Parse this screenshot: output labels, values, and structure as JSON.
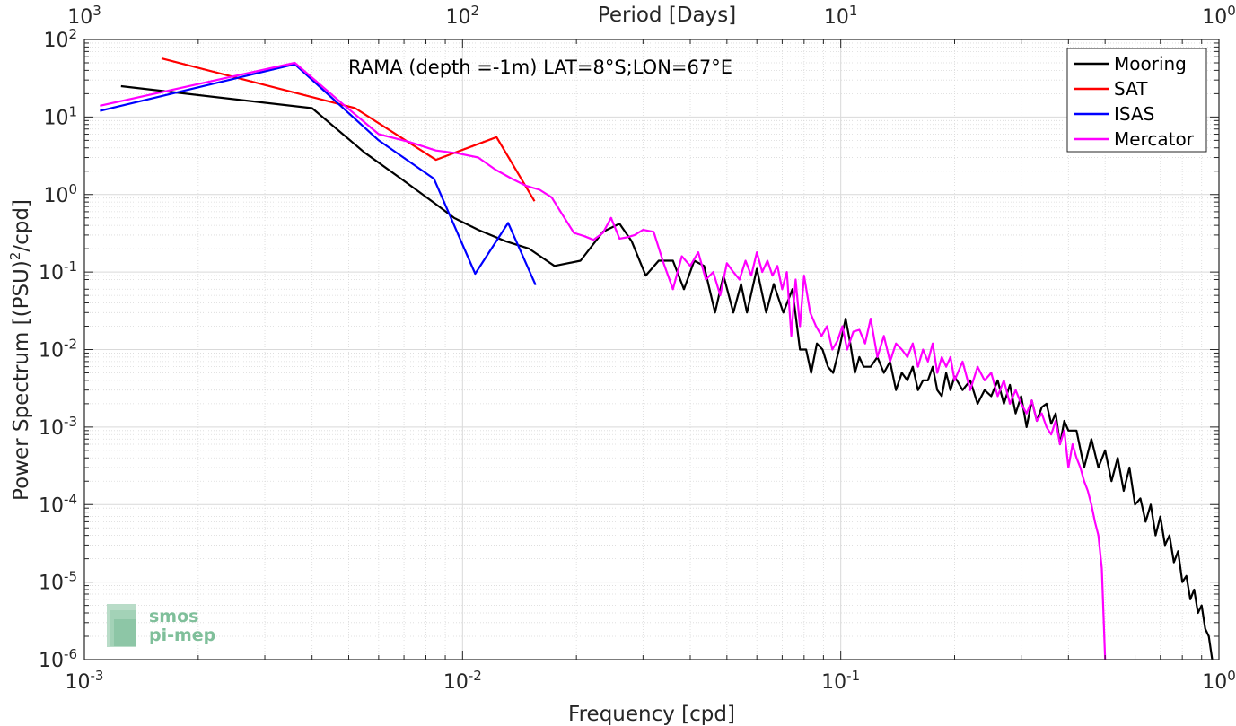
{
  "chart_data": {
    "type": "line",
    "x_scale": "log",
    "y_scale": "log",
    "xlim": [
      0.001,
      1
    ],
    "ylim": [
      1e-06,
      100
    ],
    "grid": true,
    "xlabel": "Frequency [cpd]",
    "ylabel": "Power Spectrum [(PSU)",
    "ylabel_sup": "2",
    "ylabel_suffix": "/cpd]",
    "top_xlabel": "Period [Days]",
    "annotation": "RAMA (depth =-1m) LAT=8°S;LON=67°E",
    "legend_position": "top-right",
    "x_tick_labels": [
      {
        "value": 0.001,
        "base": "10",
        "exp": "-3"
      },
      {
        "value": 0.01,
        "base": "10",
        "exp": "-2"
      },
      {
        "value": 0.1,
        "base": "10",
        "exp": "-1"
      },
      {
        "value": 1,
        "base": "10",
        "exp": "0"
      }
    ],
    "top_tick_labels": [
      {
        "value": 0.001,
        "base": "10",
        "exp": "3"
      },
      {
        "value": 0.01,
        "base": "10",
        "exp": "2"
      },
      {
        "value": 0.1,
        "base": "10",
        "exp": "1"
      },
      {
        "value": 1,
        "base": "10",
        "exp": "0"
      }
    ],
    "y_tick_labels": [
      {
        "value": 100,
        "base": "10",
        "exp": "2"
      },
      {
        "value": 10,
        "base": "10",
        "exp": "1"
      },
      {
        "value": 1,
        "base": "10",
        "exp": "0"
      },
      {
        "value": 0.1,
        "base": "10",
        "exp": "-1"
      },
      {
        "value": 0.01,
        "base": "10",
        "exp": "-2"
      },
      {
        "value": 0.001,
        "base": "10",
        "exp": "-3"
      },
      {
        "value": 0.0001,
        "base": "10",
        "exp": "-4"
      },
      {
        "value": 1e-05,
        "base": "10",
        "exp": "-5"
      },
      {
        "value": 1e-06,
        "base": "10",
        "exp": "-6"
      }
    ],
    "series": [
      {
        "name": "Mooring",
        "color": "#000000",
        "x": [
          0.00125,
          0.004,
          0.0055,
          0.007,
          0.0085,
          0.0095,
          0.011,
          0.013,
          0.015,
          0.0175,
          0.0205,
          0.0235,
          0.026,
          0.028,
          0.0305,
          0.033,
          0.036,
          0.0385,
          0.041,
          0.0435,
          0.0465,
          0.049,
          0.052,
          0.0545,
          0.0565,
          0.06,
          0.0635,
          0.0665,
          0.0705,
          0.0745,
          0.078,
          0.081,
          0.0835,
          0.0865,
          0.0895,
          0.0925,
          0.0955,
          0.099,
          0.103,
          0.106,
          0.109,
          0.112,
          0.115,
          0.12,
          0.125,
          0.13,
          0.135,
          0.14,
          0.145,
          0.15,
          0.155,
          0.16,
          0.165,
          0.17,
          0.175,
          0.18,
          0.185,
          0.19,
          0.195,
          0.2,
          0.21,
          0.22,
          0.23,
          0.24,
          0.25,
          0.26,
          0.27,
          0.28,
          0.29,
          0.3,
          0.31,
          0.32,
          0.33,
          0.34,
          0.35,
          0.36,
          0.37,
          0.38,
          0.39,
          0.4,
          0.42,
          0.44,
          0.46,
          0.48,
          0.5,
          0.52,
          0.54,
          0.56,
          0.58,
          0.6,
          0.62,
          0.64,
          0.66,
          0.68,
          0.7,
          0.72,
          0.74,
          0.76,
          0.78,
          0.8,
          0.82,
          0.84,
          0.86,
          0.88,
          0.9,
          0.92,
          0.94,
          0.96
        ],
        "y": [
          25,
          13,
          3.5,
          1.5,
          0.75,
          0.5,
          0.35,
          0.25,
          0.2,
          0.12,
          0.14,
          0.33,
          0.42,
          0.25,
          0.09,
          0.14,
          0.14,
          0.06,
          0.14,
          0.12,
          0.03,
          0.09,
          0.03,
          0.07,
          0.03,
          0.11,
          0.03,
          0.07,
          0.03,
          0.06,
          0.01,
          0.01,
          0.005,
          0.012,
          0.01,
          0.006,
          0.005,
          0.01,
          0.025,
          0.012,
          0.005,
          0.008,
          0.006,
          0.006,
          0.008,
          0.005,
          0.007,
          0.003,
          0.005,
          0.004,
          0.006,
          0.003,
          0.004,
          0.004,
          0.006,
          0.003,
          0.0025,
          0.005,
          0.003,
          0.0045,
          0.003,
          0.004,
          0.002,
          0.003,
          0.0025,
          0.004,
          0.002,
          0.0035,
          0.0015,
          0.0025,
          0.001,
          0.0022,
          0.0012,
          0.0018,
          0.002,
          0.0011,
          0.0015,
          0.0006,
          0.0012,
          0.0009,
          0.0009,
          0.0003,
          0.0007,
          0.0003,
          0.0005,
          0.0002,
          0.0004,
          0.00015,
          0.0003,
          0.0001,
          0.00012,
          6e-05,
          0.0001,
          4e-05,
          7e-05,
          3e-05,
          4e-05,
          1.8e-05,
          2.5e-05,
          1e-05,
          1.2e-05,
          6e-06,
          8e-06,
          4e-06,
          5e-06,
          2.5e-06,
          2e-06,
          1e-06
        ]
      },
      {
        "name": "SAT",
        "color": "#ff0000",
        "x": [
          0.0016,
          0.0052,
          0.0085,
          0.0123,
          0.0155
        ],
        "y": [
          57,
          13,
          2.8,
          5.5,
          0.82
        ]
      },
      {
        "name": "ISAS",
        "color": "#0000ff",
        "x": [
          0.0011,
          0.0036,
          0.006,
          0.0084,
          0.0108,
          0.0132,
          0.0156
        ],
        "y": [
          12,
          48,
          5,
          1.6,
          0.095,
          0.43,
          0.068
        ]
      },
      {
        "name": "Mercator",
        "color": "#ff00ff",
        "x": [
          0.0011,
          0.0036,
          0.0048,
          0.006,
          0.0072,
          0.0085,
          0.0097,
          0.011,
          0.0122,
          0.0135,
          0.0147,
          0.016,
          0.0172,
          0.0185,
          0.0197,
          0.021,
          0.0222,
          0.0235,
          0.0247,
          0.026,
          0.0272,
          0.0285,
          0.03,
          0.032,
          0.034,
          0.036,
          0.038,
          0.04,
          0.042,
          0.044,
          0.046,
          0.048,
          0.05,
          0.052,
          0.054,
          0.056,
          0.058,
          0.06,
          0.062,
          0.064,
          0.066,
          0.068,
          0.07,
          0.072,
          0.074,
          0.076,
          0.078,
          0.08,
          0.083,
          0.086,
          0.089,
          0.092,
          0.095,
          0.098,
          0.101,
          0.104,
          0.108,
          0.112,
          0.116,
          0.12,
          0.125,
          0.13,
          0.135,
          0.14,
          0.145,
          0.15,
          0.155,
          0.16,
          0.165,
          0.17,
          0.175,
          0.18,
          0.185,
          0.19,
          0.195,
          0.2,
          0.21,
          0.22,
          0.23,
          0.24,
          0.25,
          0.26,
          0.27,
          0.28,
          0.29,
          0.3,
          0.31,
          0.32,
          0.33,
          0.34,
          0.35,
          0.36,
          0.37,
          0.38,
          0.39,
          0.4,
          0.41,
          0.42,
          0.43,
          0.44,
          0.45,
          0.46,
          0.47,
          0.48,
          0.49,
          0.5
        ],
        "y": [
          14,
          50,
          15,
          6,
          4.8,
          3.7,
          3.4,
          3,
          2.1,
          1.6,
          1.3,
          1.15,
          0.92,
          0.52,
          0.32,
          0.29,
          0.26,
          0.32,
          0.5,
          0.27,
          0.28,
          0.3,
          0.35,
          0.33,
          0.13,
          0.06,
          0.16,
          0.12,
          0.18,
          0.08,
          0.1,
          0.05,
          0.13,
          0.1,
          0.08,
          0.14,
          0.09,
          0.18,
          0.1,
          0.14,
          0.09,
          0.12,
          0.06,
          0.1,
          0.015,
          0.08,
          0.02,
          0.09,
          0.03,
          0.02,
          0.015,
          0.02,
          0.01,
          0.013,
          0.02,
          0.01,
          0.017,
          0.018,
          0.012,
          0.025,
          0.008,
          0.015,
          0.007,
          0.012,
          0.01,
          0.008,
          0.012,
          0.006,
          0.01,
          0.007,
          0.012,
          0.005,
          0.008,
          0.006,
          0.008,
          0.004,
          0.007,
          0.003,
          0.006,
          0.004,
          0.005,
          0.0025,
          0.004,
          0.002,
          0.003,
          0.002,
          0.0015,
          0.0022,
          0.0012,
          0.0015,
          0.001,
          0.0008,
          0.0012,
          0.0006,
          0.0009,
          0.0003,
          0.0006,
          0.0004,
          0.0003,
          0.0002,
          0.00015,
          0.0001,
          6e-05,
          4e-05,
          1.5e-05,
          1e-06
        ]
      }
    ]
  },
  "logo": {
    "line1": "smos",
    "line2": "pi-mep",
    "color": "#7fbf9a"
  }
}
